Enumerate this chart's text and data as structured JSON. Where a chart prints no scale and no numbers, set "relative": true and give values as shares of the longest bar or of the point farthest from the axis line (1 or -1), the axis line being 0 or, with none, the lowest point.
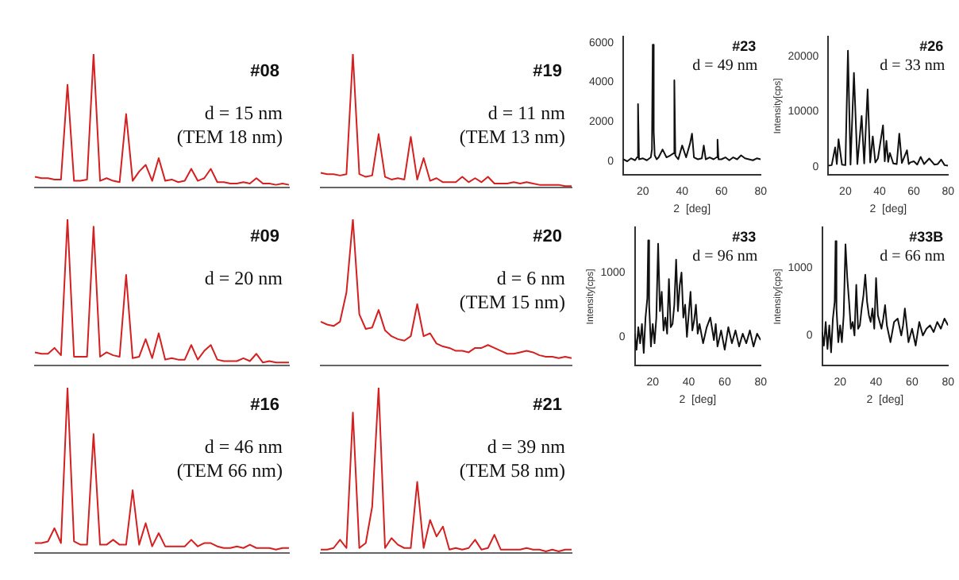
{
  "chart_data": [
    {
      "type": "line",
      "relative": true,
      "tick_labels": false,
      "annotations": [
        "#08",
        "d = 15 nm",
        "(TEM 18 nm)"
      ],
      "categories": [
        null,
        null,
        null,
        null,
        null,
        null,
        null,
        null,
        null,
        null,
        null,
        null,
        null,
        null,
        null,
        null,
        null,
        null,
        null,
        null,
        null,
        null,
        null,
        null,
        null,
        null,
        null,
        null,
        null,
        null,
        null,
        null,
        null,
        null,
        null,
        null,
        null,
        null,
        null,
        null
      ],
      "series": [
        {
          "color": "#d42020",
          "values": [
            0.08,
            0.07,
            0.07,
            0.06,
            0.06,
            0.77,
            0.05,
            0.05,
            0.06,
            1,
            0.05,
            0.07,
            0.05,
            0.04,
            0.55,
            0.05,
            0.12,
            0.17,
            0.05,
            0.22,
            0.05,
            0.06,
            0.04,
            0.05,
            0.14,
            0.05,
            0.07,
            0.14,
            0.04,
            0.04,
            0.03,
            0.03,
            0.04,
            0.03,
            0.07,
            0.03,
            0.03,
            0.02,
            0.03,
            0.02
          ]
        }
      ]
    },
    {
      "type": "line",
      "relative": true,
      "tick_labels": false,
      "annotations": [
        "#19",
        "d = 11 nm",
        "(TEM 13 nm)"
      ],
      "categories": [
        null,
        null,
        null,
        null,
        null,
        null,
        null,
        null,
        null,
        null,
        null,
        null,
        null,
        null,
        null,
        null,
        null,
        null,
        null,
        null,
        null,
        null,
        null,
        null,
        null,
        null,
        null,
        null,
        null,
        null,
        null,
        null,
        null,
        null,
        null,
        null,
        null,
        null,
        null,
        null
      ],
      "series": [
        {
          "color": "#d42020",
          "values": [
            0.11,
            0.1,
            0.1,
            0.09,
            0.1,
            1,
            0.1,
            0.08,
            0.09,
            0.4,
            0.08,
            0.06,
            0.07,
            0.06,
            0.38,
            0.06,
            0.22,
            0.05,
            0.07,
            0.04,
            0.04,
            0.04,
            0.08,
            0.04,
            0.07,
            0.04,
            0.08,
            0.03,
            0.03,
            0.03,
            0.04,
            0.03,
            0.04,
            0.03,
            0.02,
            0.02,
            0.02,
            0.02,
            0.01,
            0.01
          ]
        }
      ]
    },
    {
      "type": "line",
      "x": [
        10,
        12,
        14,
        16,
        17,
        17.5,
        18,
        20,
        22,
        24,
        24.6,
        25,
        25.5,
        26,
        27,
        28,
        30,
        32,
        34,
        35.5,
        36,
        36.5,
        38,
        40,
        42,
        44,
        45,
        46,
        48,
        50,
        51,
        52,
        54,
        56,
        57.5,
        58,
        58.5,
        60,
        62,
        64,
        66,
        68,
        70,
        72,
        74,
        76,
        78,
        80
      ],
      "xlim": [
        10,
        80
      ],
      "xticks": [
        20,
        40,
        60,
        80
      ],
      "ylim": [
        -700,
        6300
      ],
      "yticks": [
        0,
        2000,
        4000,
        6000
      ],
      "xlabel": "2  [deg]",
      "annotations": [
        "#23",
        "d = 49 nm"
      ],
      "series": [
        {
          "color": "#111111",
          "values": [
            100,
            0,
            150,
            50,
            200,
            2900,
            100,
            150,
            50,
            200,
            600,
            5900,
            1500,
            300,
            100,
            200,
            600,
            200,
            300,
            400,
            4100,
            300,
            100,
            800,
            200,
            900,
            1400,
            200,
            100,
            150,
            800,
            100,
            200,
            100,
            200,
            1100,
            100,
            100,
            200,
            50,
            200,
            100,
            300,
            150,
            100,
            50,
            150,
            100
          ]
        }
      ]
    },
    {
      "type": "line",
      "x": [
        10,
        12,
        14,
        15,
        16,
        18,
        20,
        21.5,
        23,
        25,
        27,
        29.5,
        31,
        33,
        34.5,
        36,
        37.5,
        39,
        42,
        43,
        44,
        45,
        46,
        48,
        50,
        51.5,
        53,
        56,
        57,
        58,
        60,
        62,
        64,
        66,
        69,
        72,
        74,
        76,
        78,
        80
      ],
      "xlim": [
        10,
        80
      ],
      "xticks": [
        20,
        40,
        60,
        80
      ],
      "ylim": [
        -1500,
        23500
      ],
      "yticks": [
        0,
        10000,
        20000
      ],
      "xlabel": "2  [deg]",
      "ylabel": "Intensity[cps]",
      "annotations": [
        "#26",
        "d = 33 nm"
      ],
      "series": [
        {
          "color": "#111111",
          "values": [
            200,
            300,
            3500,
            500,
            5000,
            400,
            300,
            21000,
            400,
            17000,
            500,
            9200,
            600,
            14000,
            800,
            5500,
            800,
            1500,
            7500,
            1000,
            4700,
            900,
            2500,
            600,
            500,
            6000,
            700,
            3000,
            500,
            800,
            1000,
            400,
            1800,
            500,
            1500,
            400,
            500,
            1300,
            300,
            200
          ]
        }
      ]
    },
    {
      "type": "line",
      "relative": true,
      "tick_labels": false,
      "annotations": [
        "#09",
        "d = 20 nm"
      ],
      "categories": [
        null,
        null,
        null,
        null,
        null,
        null,
        null,
        null,
        null,
        null,
        null,
        null,
        null,
        null,
        null,
        null,
        null,
        null,
        null,
        null,
        null,
        null,
        null,
        null,
        null,
        null,
        null,
        null,
        null,
        null,
        null,
        null,
        null,
        null,
        null,
        null,
        null,
        null,
        null,
        null
      ],
      "series": [
        {
          "color": "#d42020",
          "values": [
            0.09,
            0.08,
            0.08,
            0.12,
            0.07,
            1,
            0.06,
            0.06,
            0.06,
            0.95,
            0.06,
            0.09,
            0.07,
            0.06,
            0.62,
            0.05,
            0.06,
            0.18,
            0.05,
            0.22,
            0.04,
            0.05,
            0.04,
            0.04,
            0.14,
            0.04,
            0.1,
            0.14,
            0.04,
            0.03,
            0.03,
            0.03,
            0.05,
            0.03,
            0.08,
            0.02,
            0.03,
            0.02,
            0.02,
            0.02
          ]
        }
      ]
    },
    {
      "type": "line",
      "relative": true,
      "tick_labels": false,
      "annotations": [
        "#20",
        "d = 6 nm",
        "(TEM 15 nm)"
      ],
      "categories": [
        null,
        null,
        null,
        null,
        null,
        null,
        null,
        null,
        null,
        null,
        null,
        null,
        null,
        null,
        null,
        null,
        null,
        null,
        null,
        null,
        null,
        null,
        null,
        null,
        null,
        null,
        null,
        null,
        null,
        null,
        null,
        null,
        null,
        null,
        null,
        null,
        null,
        null,
        null,
        null
      ],
      "series": [
        {
          "color": "#d42020",
          "values": [
            0.3,
            0.28,
            0.27,
            0.3,
            0.5,
            1,
            0.35,
            0.25,
            0.26,
            0.38,
            0.24,
            0.2,
            0.18,
            0.17,
            0.2,
            0.42,
            0.2,
            0.22,
            0.15,
            0.13,
            0.12,
            0.1,
            0.1,
            0.09,
            0.12,
            0.12,
            0.14,
            0.12,
            0.1,
            0.08,
            0.08,
            0.09,
            0.1,
            0.09,
            0.07,
            0.06,
            0.06,
            0.05,
            0.06,
            0.05
          ]
        }
      ]
    },
    {
      "type": "line",
      "x": [
        10,
        11,
        12,
        13,
        14,
        15,
        16,
        17,
        17.5,
        18,
        19,
        20,
        21,
        22,
        23,
        24,
        25,
        26,
        27,
        28,
        29,
        30,
        31,
        32,
        33,
        34,
        35,
        36,
        37,
        38,
        39,
        40,
        41,
        42,
        43,
        44,
        45,
        46,
        48,
        50,
        52,
        54,
        55,
        56,
        58,
        60,
        62,
        64,
        66,
        68,
        70,
        72,
        74,
        76,
        78,
        80
      ],
      "xlim": [
        10,
        80
      ],
      "xticks": [
        20,
        40,
        60,
        80
      ],
      "ylim": [
        -450,
        1700
      ],
      "yticks": [
        0,
        1000
      ],
      "xlabel": "2  [deg]",
      "ylabel": "Intensity[cps]",
      "annotations": [
        "#33",
        "d = 96 nm"
      ],
      "series": [
        {
          "color": "#111111",
          "values": [
            50,
            -200,
            150,
            -100,
            200,
            -250,
            300,
            600,
            1500,
            500,
            -150,
            200,
            -100,
            300,
            1450,
            400,
            700,
            100,
            300,
            50,
            900,
            150,
            200,
            500,
            1200,
            400,
            800,
            1000,
            300,
            500,
            0,
            350,
            700,
            100,
            250,
            500,
            50,
            200,
            -100,
            150,
            300,
            -50,
            200,
            -150,
            100,
            -200,
            150,
            -100,
            100,
            -150,
            50,
            -100,
            100,
            -150,
            50,
            -50
          ]
        }
      ]
    },
    {
      "type": "line",
      "x": [
        10,
        11,
        12,
        13,
        14,
        15,
        16,
        17,
        17.5,
        18,
        19,
        20,
        21,
        22,
        23,
        24,
        25,
        26,
        27,
        28,
        29,
        30,
        31,
        32,
        33,
        34,
        35,
        36,
        37,
        38,
        39,
        40,
        41,
        42,
        43,
        44,
        45,
        46,
        48,
        50,
        52,
        54,
        55,
        56,
        58,
        60,
        62,
        64,
        66,
        68,
        70,
        72,
        74,
        76,
        78,
        80
      ],
      "xlim": [
        10,
        80
      ],
      "xticks": [
        20,
        40,
        60,
        80
      ],
      "ylim": [
        -450,
        1600
      ],
      "yticks": [
        0,
        1000
      ],
      "xlabel": "2  [deg]",
      "ylabel": "Intensity[cps]",
      "annotations": [
        "#33B",
        "d = 66 nm"
      ],
      "series": [
        {
          "color": "#111111",
          "values": [
            50,
            -150,
            200,
            -200,
            150,
            -250,
            250,
            500,
            1400,
            400,
            -100,
            150,
            -100,
            300,
            1350,
            850,
            500,
            100,
            200,
            0,
            750,
            100,
            150,
            400,
            600,
            900,
            500,
            300,
            200,
            400,
            100,
            850,
            300,
            200,
            100,
            250,
            450,
            150,
            -100,
            200,
            250,
            0,
            150,
            400,
            -100,
            100,
            -150,
            200,
            0,
            100,
            150,
            50,
            200,
            100,
            250,
            150
          ]
        }
      ]
    },
    {
      "type": "line",
      "relative": true,
      "tick_labels": false,
      "annotations": [
        "#16",
        "d = 46 nm",
        "(TEM 66 nm)"
      ],
      "categories": [
        null,
        null,
        null,
        null,
        null,
        null,
        null,
        null,
        null,
        null,
        null,
        null,
        null,
        null,
        null,
        null,
        null,
        null,
        null,
        null,
        null,
        null,
        null,
        null,
        null,
        null,
        null,
        null,
        null,
        null,
        null,
        null,
        null,
        null,
        null,
        null,
        null,
        null,
        null,
        null
      ],
      "series": [
        {
          "color": "#d42020",
          "values": [
            0.06,
            0.06,
            0.07,
            0.15,
            0.06,
            1,
            0.07,
            0.05,
            0.05,
            0.72,
            0.05,
            0.05,
            0.08,
            0.05,
            0.05,
            0.38,
            0.05,
            0.18,
            0.04,
            0.12,
            0.04,
            0.04,
            0.04,
            0.04,
            0.08,
            0.04,
            0.06,
            0.06,
            0.04,
            0.03,
            0.03,
            0.04,
            0.03,
            0.05,
            0.03,
            0.03,
            0.03,
            0.02,
            0.03,
            0.03
          ]
        }
      ]
    },
    {
      "type": "line",
      "relative": true,
      "tick_labels": false,
      "annotations": [
        "#21",
        "d = 39 nm",
        "(TEM 58 nm)"
      ],
      "categories": [
        null,
        null,
        null,
        null,
        null,
        null,
        null,
        null,
        null,
        null,
        null,
        null,
        null,
        null,
        null,
        null,
        null,
        null,
        null,
        null,
        null,
        null,
        null,
        null,
        null,
        null,
        null,
        null,
        null,
        null,
        null,
        null,
        null,
        null,
        null,
        null,
        null,
        null,
        null,
        null
      ],
      "series": [
        {
          "color": "#d42020",
          "values": [
            0.02,
            0.02,
            0.03,
            0.08,
            0.03,
            0.85,
            0.03,
            0.06,
            0.28,
            1,
            0.03,
            0.09,
            0.05,
            0.03,
            0.03,
            0.43,
            0.03,
            0.2,
            0.1,
            0.16,
            0.02,
            0.03,
            0.02,
            0.03,
            0.08,
            0.02,
            0.03,
            0.11,
            0.02,
            0.02,
            0.02,
            0.02,
            0.03,
            0.02,
            0.02,
            0.01,
            0.02,
            0.01,
            0.02,
            0.02
          ]
        }
      ]
    }
  ]
}
